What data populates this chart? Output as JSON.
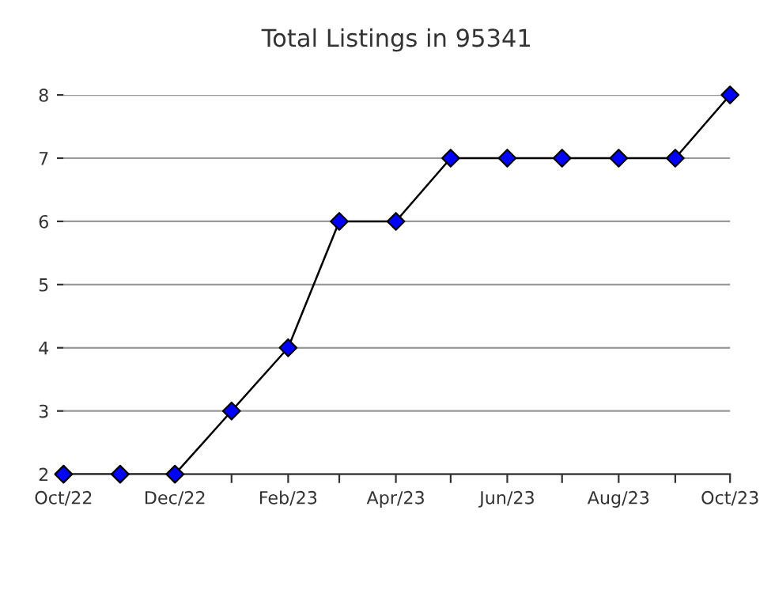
{
  "chart_data": {
    "type": "line",
    "title": "Total Listings in 95341",
    "x": [
      "2022-10",
      "2022-11",
      "2022-12",
      "2023-01",
      "2023-02",
      "2023-03",
      "2023-04",
      "2023-05",
      "2023-06",
      "2023-07",
      "2023-08",
      "2023-09",
      "2023-10"
    ],
    "series": [
      {
        "color": "#000000",
        "colors": [
          "#0000ff",
          "#0000ff",
          "#0000ff",
          "#0000ff",
          "#0000ff",
          "#0000ff",
          "#0000ff",
          "#0000ff",
          "#0000ff",
          "#0000ff",
          "#0000ff",
          "#0000ff",
          "#0000ff"
        ],
        "values": [
          2,
          2,
          2,
          3,
          4,
          6,
          6,
          7,
          7,
          7,
          7,
          7,
          8
        ]
      }
    ],
    "xlim": [
      "2022-10",
      "2023-10"
    ],
    "xticks": [
      {
        "value": "2022-10",
        "label": "Oct/22"
      },
      {
        "value": "2022-11",
        "label": null
      },
      {
        "value": "2022-12",
        "label": "Dec/22"
      },
      {
        "value": "2023-01",
        "label": null
      },
      {
        "value": "2023-02",
        "label": "Feb/23"
      },
      {
        "value": "2023-03",
        "label": null
      },
      {
        "value": "2023-04",
        "label": "Apr/23"
      },
      {
        "value": "2023-05",
        "label": null
      },
      {
        "value": "2023-06",
        "label": "Jun/23"
      },
      {
        "value": "2023-07",
        "label": null
      },
      {
        "value": "2023-08",
        "label": "Aug/23"
      },
      {
        "value": "2023-09",
        "label": null
      },
      {
        "value": "2023-10",
        "label": "Oct/23"
      }
    ],
    "ylim": [
      2,
      8
    ],
    "yticks": [
      2,
      3,
      4,
      5,
      6,
      7,
      8
    ],
    "grid": "y",
    "marker": "diamond",
    "line_style": "solid",
    "legend": false
  }
}
